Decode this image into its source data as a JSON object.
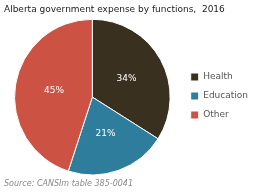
{
  "chart_data": {
    "type": "pie",
    "title": "Alberta government expense by functions,  2016",
    "categories": [
      "Health",
      "Education",
      "Other"
    ],
    "values": [
      34,
      21,
      45
    ],
    "value_labels": [
      "34%",
      "21%",
      "45%"
    ],
    "colors": [
      "#3a3020",
      "#2e7d9c",
      "#cc5244"
    ],
    "data_labels": true,
    "legend": "right",
    "annotations": [
      "Source: CANSIm table 385-0041"
    ]
  }
}
